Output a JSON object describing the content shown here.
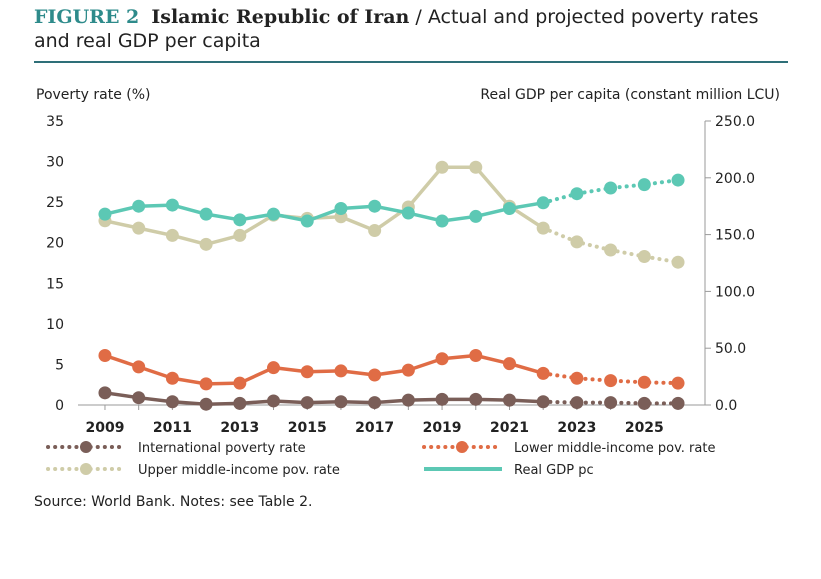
{
  "figure": {
    "label": "FIGURE 2",
    "country": "Islamic Republic of Iran",
    "separator": " / ",
    "subtitle": "Actual and projected poverty rates and real GDP per capita"
  },
  "source": "Source: World Bank. Notes: see Table 2.",
  "chart_data": {
    "type": "line",
    "ylabel_left": "Poverty rate (%)",
    "ylabel_right": "Real GDP per capita (constant million LCU)",
    "ylim_left": [
      0,
      35
    ],
    "ylim_right": [
      0,
      250
    ],
    "xlim": [
      2008.2,
      2026.8
    ],
    "left_ticks": [
      "0",
      "5",
      "10",
      "15",
      "20",
      "25",
      "30",
      "35"
    ],
    "right_ticks": [
      "0.0",
      "50.0",
      "100.0",
      "150.0",
      "200.0",
      "250.0"
    ],
    "x_ticks": [
      "2009",
      "2011",
      "2013",
      "2015",
      "2017",
      "2019",
      "2021",
      "2023",
      "2025"
    ],
    "x": [
      2009,
      2010,
      2011,
      2012,
      2013,
      2014,
      2015,
      2016,
      2017,
      2018,
      2019,
      2020,
      2021,
      2022,
      2023,
      2024,
      2025,
      2026
    ],
    "legend_position": "bottom",
    "series": [
      {
        "name": "International poverty rate",
        "axis": "left",
        "color": "#7a5e58",
        "actual_until": 2022,
        "values": [
          1.5,
          0.9,
          0.4,
          0.1,
          0.2,
          0.5,
          0.3,
          0.4,
          0.3,
          0.6,
          0.7,
          0.7,
          0.6,
          0.4,
          0.3,
          0.3,
          0.2,
          0.2
        ]
      },
      {
        "name": "Lower middle-income pov. rate",
        "axis": "left",
        "color": "#e06c45",
        "actual_until": 2022,
        "values": [
          6.1,
          4.7,
          3.3,
          2.6,
          2.7,
          4.6,
          4.1,
          4.2,
          3.7,
          4.3,
          5.7,
          6.1,
          5.1,
          3.9,
          3.3,
          3.0,
          2.8,
          2.7
        ]
      },
      {
        "name": "Upper middle-income pov. rate",
        "axis": "left",
        "color": "#cfcca8",
        "actual_until": 2022,
        "values": [
          22.7,
          21.8,
          20.9,
          19.8,
          20.9,
          23.4,
          23.0,
          23.2,
          21.5,
          24.4,
          29.3,
          29.3,
          24.5,
          21.8,
          20.1,
          19.1,
          18.3,
          17.6
        ]
      },
      {
        "name": "Real GDP pc",
        "axis": "right",
        "color": "#5cc8b4",
        "actual_until": 2022,
        "values": [
          168,
          175,
          176,
          168,
          163,
          168,
          162,
          173,
          175,
          169,
          162,
          166,
          173,
          178,
          186,
          191,
          194,
          198
        ]
      }
    ]
  }
}
